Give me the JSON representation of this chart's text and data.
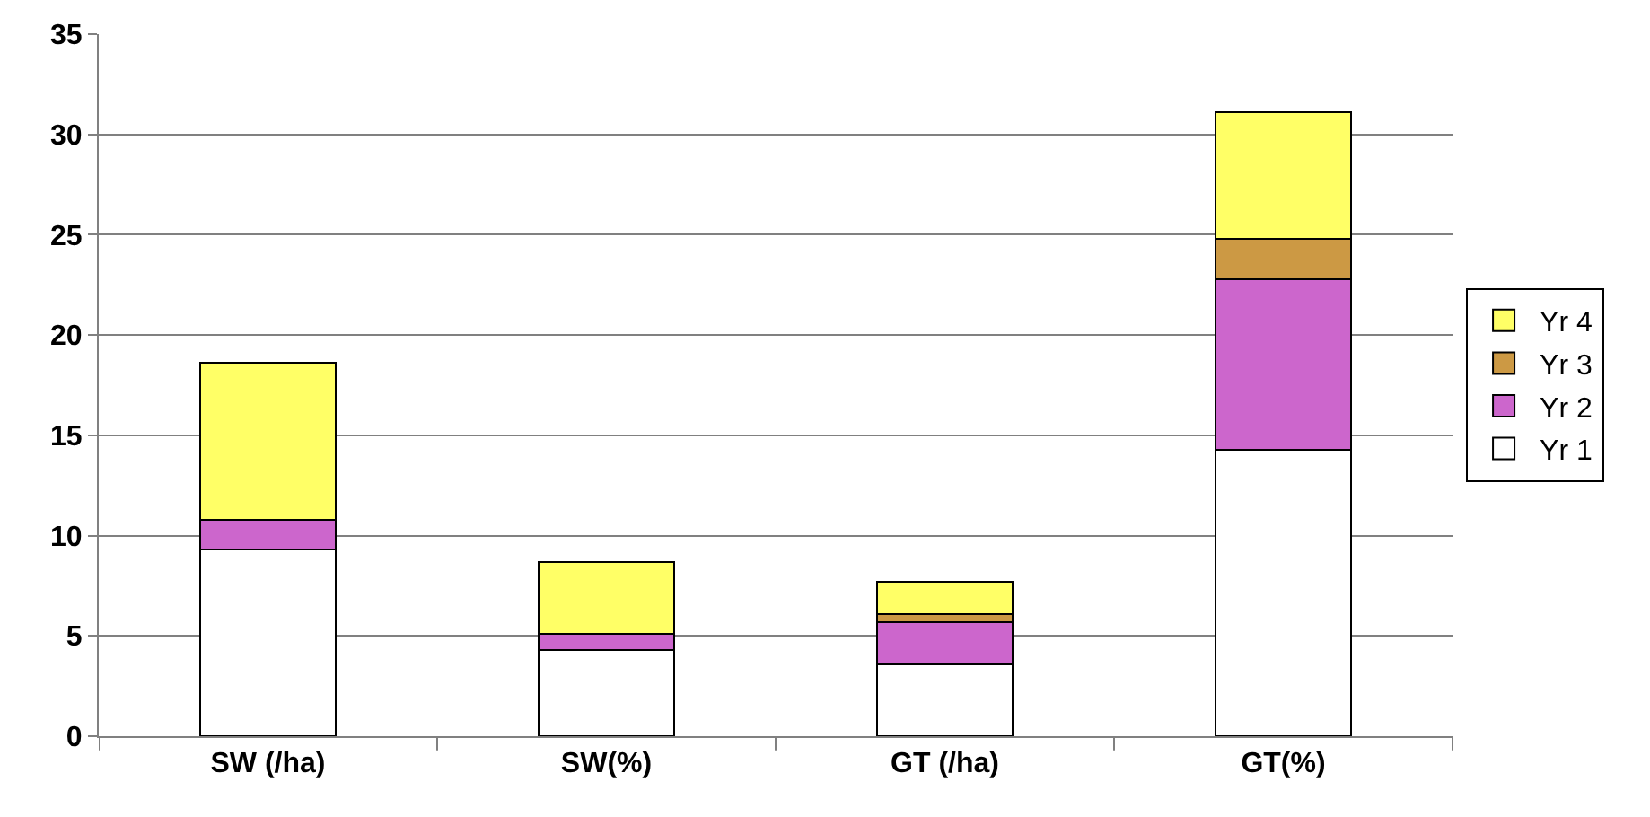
{
  "chart_data": {
    "type": "bar",
    "stacked": true,
    "categories": [
      "SW (/ha)",
      "SW(%)",
      "GT (/ha)",
      "GT(%)"
    ],
    "series": [
      {
        "name": "Yr 1",
        "color": "#ffffff",
        "values": [
          9.3,
          4.3,
          3.6,
          14.3
        ]
      },
      {
        "name": "Yr 2",
        "color": "#cc66cc",
        "values": [
          1.5,
          0.8,
          2.1,
          8.5
        ]
      },
      {
        "name": "Yr 3",
        "color": "#cc9944",
        "values": [
          0,
          0,
          0.4,
          2.0
        ]
      },
      {
        "name": "Yr 4",
        "color": "#ffff66",
        "values": [
          7.8,
          3.6,
          1.6,
          6.3
        ]
      }
    ],
    "ylim": [
      0,
      35
    ],
    "yticks": [
      0,
      5,
      10,
      15,
      20,
      25,
      30,
      35
    ],
    "grid": "y",
    "legend": "right"
  }
}
